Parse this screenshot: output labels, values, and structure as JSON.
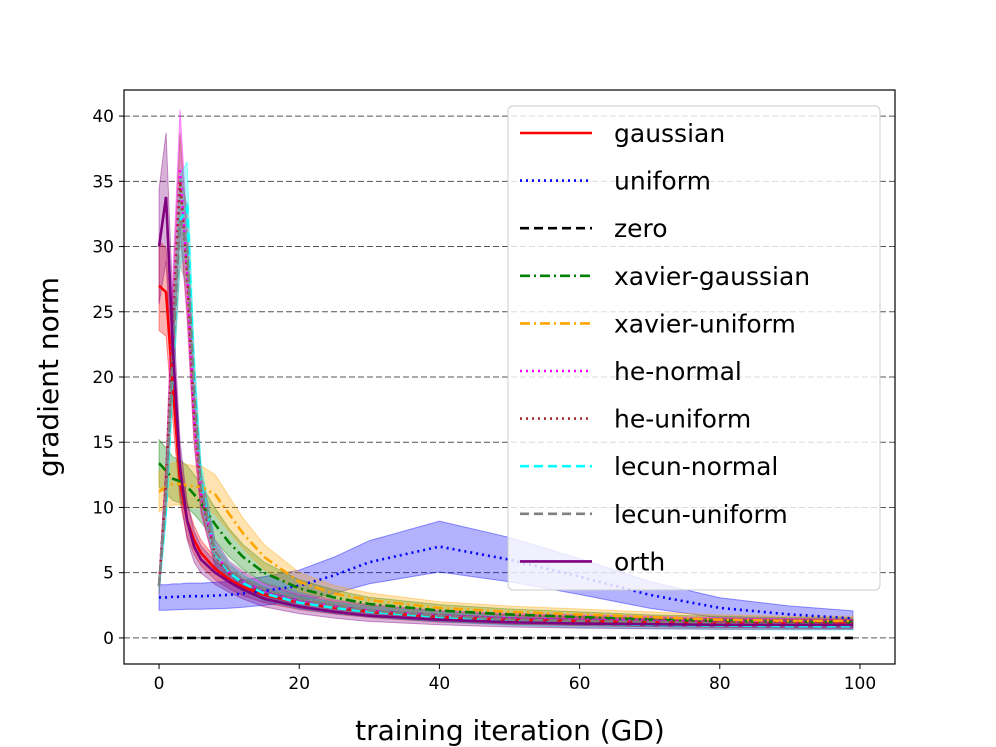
{
  "chart_data": {
    "type": "line",
    "title": "",
    "xlabel": "training iteration (GD)",
    "ylabel": "gradient norm",
    "xlim": [
      -5,
      105
    ],
    "ylim": [
      -2,
      42
    ],
    "xticks": [
      0,
      20,
      40,
      60,
      80,
      100
    ],
    "yticks": [
      0,
      5,
      10,
      15,
      20,
      25,
      30,
      35,
      40
    ],
    "grid": "horizontal dashed",
    "legend_position": "top-right",
    "x": [
      0,
      1,
      2,
      3,
      4,
      5,
      6,
      8,
      10,
      12,
      15,
      20,
      25,
      30,
      40,
      50,
      60,
      70,
      80,
      90,
      99
    ],
    "series": [
      {
        "name": "gaussian",
        "color": "#ff0000",
        "dash": "solid",
        "band": 0.12,
        "values": [
          27,
          26.5,
          19,
          12,
          9,
          7.5,
          6.5,
          5.3,
          4.5,
          3.9,
          3.3,
          2.7,
          2.3,
          2.0,
          1.6,
          1.4,
          1.3,
          1.2,
          1.15,
          1.1,
          1.1
        ]
      },
      {
        "name": "uniform",
        "color": "#0000ff",
        "dash": "dotted",
        "band": 0.25,
        "values": [
          3.1,
          3.1,
          3.15,
          3.15,
          3.2,
          3.2,
          3.2,
          3.25,
          3.3,
          3.4,
          3.6,
          4.0,
          4.8,
          5.8,
          7.0,
          6.0,
          4.7,
          3.3,
          2.3,
          1.8,
          1.5
        ]
      },
      {
        "name": "zero",
        "color": "#000000",
        "dash": "dashed",
        "band": 0,
        "values": [
          0,
          0,
          0,
          0,
          0,
          0,
          0,
          0,
          0,
          0,
          0,
          0,
          0,
          0,
          0,
          0,
          0,
          0,
          0,
          0,
          0
        ]
      },
      {
        "name": "xavier-gaussian",
        "color": "#008000",
        "dash": "dashdot",
        "band": 0.12,
        "values": [
          13.4,
          12.8,
          12.2,
          12.0,
          11.6,
          11.0,
          10.3,
          8.7,
          7.3,
          6.2,
          5.0,
          3.8,
          3.1,
          2.6,
          2.1,
          1.8,
          1.6,
          1.4,
          1.3,
          1.2,
          1.2
        ]
      },
      {
        "name": "xavier-uniform",
        "color": "#ffa500",
        "dash": "dashdot",
        "band": 0.12,
        "values": [
          11.2,
          11.6,
          11.8,
          11.8,
          11.7,
          11.6,
          11.6,
          11.0,
          9.5,
          8.0,
          6.2,
          4.3,
          3.4,
          2.9,
          2.3,
          2.0,
          1.8,
          1.6,
          1.4,
          1.3,
          1.3
        ]
      },
      {
        "name": "he-normal",
        "color": "#ff00ff",
        "dash": "dotted",
        "band": 0.12,
        "values": [
          4,
          12,
          25,
          36,
          28,
          17,
          11,
          6.5,
          5.0,
          4.3,
          3.5,
          2.8,
          2.4,
          2.1,
          1.7,
          1.5,
          1.4,
          1.3,
          1.2,
          1.15,
          1.1
        ]
      },
      {
        "name": "he-uniform",
        "color": "#a52a2a",
        "dash": "dotted",
        "band": 0.1,
        "values": [
          4,
          12,
          24,
          35,
          28,
          17,
          11,
          6.3,
          4.9,
          4.2,
          3.4,
          2.7,
          2.3,
          2.0,
          1.6,
          1.4,
          1.3,
          1.2,
          1.15,
          1.1,
          1.1
        ]
      },
      {
        "name": "lecun-normal",
        "color": "#00ffff",
        "dash": "dashed",
        "band": 0.1,
        "values": [
          4,
          10,
          21,
          32,
          33,
          20,
          12,
          6.5,
          5.0,
          4.2,
          3.4,
          2.7,
          2.3,
          2.0,
          1.6,
          1.3,
          1.1,
          1.0,
          0.95,
          0.9,
          0.9
        ]
      },
      {
        "name": "lecun-uniform",
        "color": "#808080",
        "dash": "dashed",
        "band": 0.1,
        "values": [
          4,
          11,
          22,
          32,
          30,
          19,
          11.5,
          6.6,
          5.2,
          4.5,
          3.7,
          3.0,
          2.5,
          2.1,
          1.7,
          1.4,
          1.3,
          1.2,
          1.1,
          1.05,
          1.0
        ]
      },
      {
        "name": "orth",
        "color": "#800080",
        "dash": "solid",
        "band": 0.14,
        "values": [
          30,
          33.8,
          22,
          13,
          9,
          7,
          6,
          5,
          4.3,
          3.7,
          3.0,
          2.4,
          2.0,
          1.7,
          1.4,
          1.2,
          1.1,
          1.05,
          1.0,
          1.0,
          1.0
        ]
      }
    ]
  }
}
